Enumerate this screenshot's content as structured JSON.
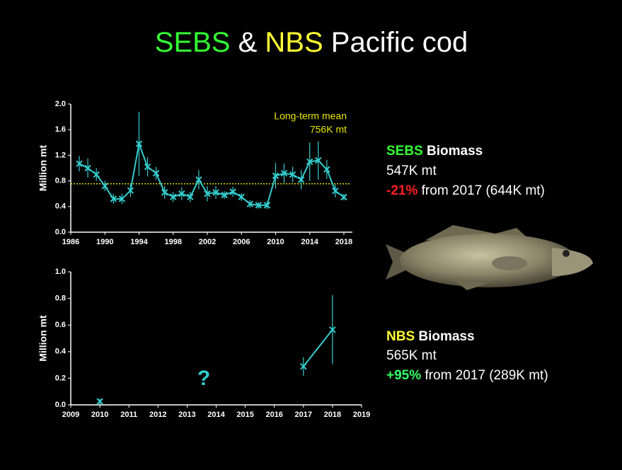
{
  "slide": {
    "title": [
      "SEBS",
      "&",
      "NBS",
      "Pacific cod"
    ],
    "sebs": {
      "name": "SEBS",
      "label": "Biomass",
      "value": "547K mt",
      "change": "-21%",
      "change_text": "from 2017 (644K mt)"
    },
    "nbs": {
      "name": "NBS",
      "label": "Biomass",
      "value": "565K mt",
      "change": "+95%",
      "change_text": "from 2017 (289K mt)"
    }
  },
  "chart_data": [
    {
      "type": "line",
      "ylabel": "Million mt",
      "color": "#33cccc",
      "x": [
        1987,
        1988,
        1989,
        1990,
        1991,
        1992,
        1993,
        1994,
        1995,
        1996,
        1997,
        1998,
        1999,
        2000,
        2001,
        2002,
        2003,
        2004,
        2005,
        2006,
        2007,
        2008,
        2009,
        2010,
        2011,
        2012,
        2013,
        2014,
        2015,
        2016,
        2017,
        2018
      ],
      "values": [
        1.07,
        1.0,
        0.9,
        0.72,
        0.52,
        0.52,
        0.65,
        1.38,
        1.02,
        0.92,
        0.62,
        0.55,
        0.6,
        0.55,
        0.82,
        0.6,
        0.62,
        0.58,
        0.63,
        0.55,
        0.44,
        0.42,
        0.42,
        0.88,
        0.92,
        0.9,
        0.82,
        1.1,
        1.12,
        0.98,
        0.644,
        0.547
      ],
      "errors": [
        0.12,
        0.15,
        0.1,
        0.08,
        0.08,
        0.08,
        0.1,
        0.5,
        0.15,
        0.1,
        0.1,
        0.08,
        0.1,
        0.08,
        0.15,
        0.12,
        0.1,
        0.06,
        0.08,
        0.06,
        0.06,
        0.05,
        0.06,
        0.2,
        0.15,
        0.12,
        0.15,
        0.3,
        0.3,
        0.15,
        0.1,
        0.05
      ],
      "mean_line": 0.756,
      "mean_color": "#e6e600",
      "annotation": [
        "Long-term mean",
        "756K mt"
      ],
      "xlim": [
        1986,
        2019
      ],
      "xticks": [
        1986,
        1990,
        1994,
        1998,
        2002,
        2006,
        2010,
        2014,
        2018
      ],
      "ylim": [
        0,
        2
      ],
      "yticks": [
        {
          "value": 0,
          "label": "0.0"
        },
        0.4,
        0.8,
        1.2,
        1.6,
        {
          "value": 2,
          "label": "2.0"
        }
      ]
    },
    {
      "type": "line",
      "ylabel": "Million mt",
      "color": "#33cccc",
      "x": [
        2010,
        2011,
        2012,
        2013,
        2014,
        2015,
        2016,
        2017,
        2018
      ],
      "values": [
        0.026,
        null,
        null,
        null,
        null,
        null,
        null,
        0.289,
        0.565
      ],
      "errors": [
        0.02,
        null,
        null,
        null,
        null,
        null,
        null,
        0.07,
        0.26
      ],
      "annotation": [
        "?"
      ],
      "xlim": [
        2009,
        2019
      ],
      "xticks": [
        2009,
        2010,
        2011,
        2012,
        2013,
        2014,
        2015,
        2016,
        2017,
        2018,
        2019
      ],
      "ylim": [
        0,
        1
      ],
      "yticks": [
        {
          "value": 0,
          "label": "0.0"
        },
        0.2,
        0.4,
        0.6,
        0.8,
        {
          "value": 1,
          "label": "1.0"
        }
      ]
    }
  ]
}
